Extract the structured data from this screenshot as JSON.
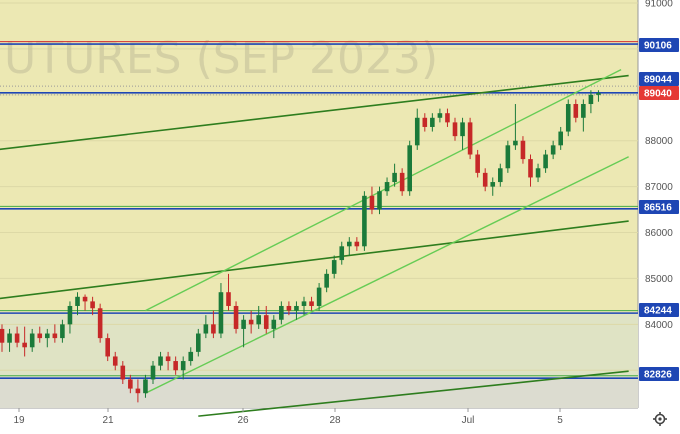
{
  "chart_data": {
    "type": "candlestick",
    "watermark": "UTURES (SEP 2023)",
    "x_ticks": [
      "19",
      "21",
      "26",
      "28",
      "Jul",
      "5"
    ],
    "y_ticks": [
      "91000",
      "88000",
      "87000",
      "86000",
      "85000",
      "84000"
    ],
    "ylim": [
      82300,
      91100
    ],
    "price_tags": [
      {
        "label": "90106",
        "value": 90106,
        "color": "#1e46b4"
      },
      {
        "label": "89044",
        "value": 89044,
        "color": "#1e46b4"
      },
      {
        "label": "89040",
        "value": 89040,
        "color": "#e53935"
      },
      {
        "label": "86516",
        "value": 86516,
        "color": "#1e46b4"
      },
      {
        "label": "84244",
        "value": 84244,
        "color": "#1e46b4"
      },
      {
        "label": "82826",
        "value": 82826,
        "color": "#1e46b4"
      }
    ],
    "candles": [
      {
        "o": 83900,
        "h": 84000,
        "l": 83400,
        "c": 83600
      },
      {
        "o": 83600,
        "h": 83900,
        "l": 83400,
        "c": 83800
      },
      {
        "o": 83800,
        "h": 83950,
        "l": 83500,
        "c": 83600
      },
      {
        "o": 83600,
        "h": 83950,
        "l": 83300,
        "c": 83500
      },
      {
        "o": 83500,
        "h": 83900,
        "l": 83400,
        "c": 83800
      },
      {
        "o": 83800,
        "h": 83950,
        "l": 83600,
        "c": 83700
      },
      {
        "o": 83700,
        "h": 83900,
        "l": 83500,
        "c": 83800
      },
      {
        "o": 83800,
        "h": 84000,
        "l": 83600,
        "c": 83700
      },
      {
        "o": 83700,
        "h": 84100,
        "l": 83600,
        "c": 84000
      },
      {
        "o": 84000,
        "h": 84500,
        "l": 83800,
        "c": 84400
      },
      {
        "o": 84400,
        "h": 84700,
        "l": 84200,
        "c": 84600
      },
      {
        "o": 84600,
        "h": 84650,
        "l": 84300,
        "c": 84500
      },
      {
        "o": 84500,
        "h": 84600,
        "l": 84200,
        "c": 84350
      },
      {
        "o": 84350,
        "h": 84450,
        "l": 83600,
        "c": 83700
      },
      {
        "o": 83700,
        "h": 83800,
        "l": 83200,
        "c": 83300
      },
      {
        "o": 83300,
        "h": 83400,
        "l": 83000,
        "c": 83100
      },
      {
        "o": 83100,
        "h": 83200,
        "l": 82700,
        "c": 82800
      },
      {
        "o": 82800,
        "h": 82900,
        "l": 82500,
        "c": 82600
      },
      {
        "o": 82600,
        "h": 82800,
        "l": 82300,
        "c": 82500
      },
      {
        "o": 82500,
        "h": 82900,
        "l": 82400,
        "c": 82800
      },
      {
        "o": 82800,
        "h": 83200,
        "l": 82700,
        "c": 83100
      },
      {
        "o": 83100,
        "h": 83400,
        "l": 83000,
        "c": 83300
      },
      {
        "o": 83300,
        "h": 83400,
        "l": 83000,
        "c": 83200
      },
      {
        "o": 83200,
        "h": 83300,
        "l": 82900,
        "c": 83000
      },
      {
        "o": 83000,
        "h": 83300,
        "l": 82800,
        "c": 83200
      },
      {
        "o": 83200,
        "h": 83500,
        "l": 83100,
        "c": 83400
      },
      {
        "o": 83400,
        "h": 83900,
        "l": 83300,
        "c": 83800
      },
      {
        "o": 83800,
        "h": 84200,
        "l": 83700,
        "c": 84000
      },
      {
        "o": 84000,
        "h": 84300,
        "l": 83700,
        "c": 83800
      },
      {
        "o": 83800,
        "h": 84900,
        "l": 83700,
        "c": 84700
      },
      {
        "o": 84700,
        "h": 85100,
        "l": 84300,
        "c": 84400
      },
      {
        "o": 84400,
        "h": 84500,
        "l": 83800,
        "c": 83900
      },
      {
        "o": 83900,
        "h": 84200,
        "l": 83500,
        "c": 84100
      },
      {
        "o": 84100,
        "h": 84300,
        "l": 83800,
        "c": 84000
      },
      {
        "o": 84000,
        "h": 84400,
        "l": 83900,
        "c": 84200
      },
      {
        "o": 84200,
        "h": 84400,
        "l": 83800,
        "c": 83900
      },
      {
        "o": 83900,
        "h": 84200,
        "l": 83700,
        "c": 84100
      },
      {
        "o": 84100,
        "h": 84500,
        "l": 84000,
        "c": 84400
      },
      {
        "o": 84400,
        "h": 84500,
        "l": 84200,
        "c": 84300
      },
      {
        "o": 84300,
        "h": 84500,
        "l": 84100,
        "c": 84400
      },
      {
        "o": 84400,
        "h": 84600,
        "l": 84200,
        "c": 84500
      },
      {
        "o": 84500,
        "h": 84600,
        "l": 84300,
        "c": 84400
      },
      {
        "o": 84400,
        "h": 84900,
        "l": 84300,
        "c": 84800
      },
      {
        "o": 84800,
        "h": 85200,
        "l": 84700,
        "c": 85100
      },
      {
        "o": 85100,
        "h": 85500,
        "l": 85000,
        "c": 85400
      },
      {
        "o": 85400,
        "h": 85800,
        "l": 85300,
        "c": 85700
      },
      {
        "o": 85700,
        "h": 85900,
        "l": 85500,
        "c": 85800
      },
      {
        "o": 85800,
        "h": 85900,
        "l": 85600,
        "c": 85700
      },
      {
        "o": 85700,
        "h": 86900,
        "l": 85600,
        "c": 86800
      },
      {
        "o": 86800,
        "h": 87000,
        "l": 86400,
        "c": 86500
      },
      {
        "o": 86500,
        "h": 87000,
        "l": 86400,
        "c": 86900
      },
      {
        "o": 86900,
        "h": 87200,
        "l": 86800,
        "c": 87100
      },
      {
        "o": 87100,
        "h": 87500,
        "l": 87000,
        "c": 87300
      },
      {
        "o": 87300,
        "h": 87400,
        "l": 86800,
        "c": 86900
      },
      {
        "o": 86900,
        "h": 88000,
        "l": 86800,
        "c": 87900
      },
      {
        "o": 87900,
        "h": 88700,
        "l": 87800,
        "c": 88500
      },
      {
        "o": 88500,
        "h": 88600,
        "l": 88200,
        "c": 88300
      },
      {
        "o": 88300,
        "h": 88600,
        "l": 88200,
        "c": 88500
      },
      {
        "o": 88500,
        "h": 88700,
        "l": 88400,
        "c": 88600
      },
      {
        "o": 88600,
        "h": 88700,
        "l": 88300,
        "c": 88400
      },
      {
        "o": 88400,
        "h": 88500,
        "l": 88000,
        "c": 88100
      },
      {
        "o": 88100,
        "h": 88500,
        "l": 87800,
        "c": 88400
      },
      {
        "o": 88400,
        "h": 88500,
        "l": 87600,
        "c": 87700
      },
      {
        "o": 87700,
        "h": 87800,
        "l": 87200,
        "c": 87300
      },
      {
        "o": 87300,
        "h": 87400,
        "l": 86900,
        "c": 87000
      },
      {
        "o": 87000,
        "h": 87200,
        "l": 86800,
        "c": 87100
      },
      {
        "o": 87100,
        "h": 87500,
        "l": 87000,
        "c": 87400
      },
      {
        "o": 87400,
        "h": 88000,
        "l": 87300,
        "c": 87900
      },
      {
        "o": 87900,
        "h": 88800,
        "l": 87800,
        "c": 88000
      },
      {
        "o": 88000,
        "h": 88100,
        "l": 87500,
        "c": 87600
      },
      {
        "o": 87600,
        "h": 87700,
        "l": 87000,
        "c": 87200
      },
      {
        "o": 87200,
        "h": 87500,
        "l": 87100,
        "c": 87400
      },
      {
        "o": 87400,
        "h": 87800,
        "l": 87300,
        "c": 87700
      },
      {
        "o": 87700,
        "h": 88000,
        "l": 87600,
        "c": 87900
      },
      {
        "o": 87900,
        "h": 88300,
        "l": 87800,
        "c": 88200
      },
      {
        "o": 88200,
        "h": 88900,
        "l": 88100,
        "c": 88800
      },
      {
        "o": 88800,
        "h": 88900,
        "l": 88400,
        "c": 88500
      },
      {
        "o": 88500,
        "h": 88900,
        "l": 88200,
        "c": 88800
      },
      {
        "o": 88800,
        "h": 89100,
        "l": 88600,
        "c": 89000
      },
      {
        "o": 89000,
        "h": 89100,
        "l": 88850,
        "c": 89040
      }
    ],
    "horizontal_levels": [
      90160,
      90106,
      89044,
      86516,
      84244,
      82826
    ],
    "channel_lines": [
      {
        "from": [
          -1,
          87800
        ],
        "to": [
          83,
          89420
        ],
        "color": "#2e7d1e"
      },
      {
        "from": [
          -1,
          84550
        ],
        "to": [
          83,
          86250
        ],
        "color": "#2e7d1e"
      },
      {
        "from": [
          26,
          82000
        ],
        "to": [
          83,
          82980
        ],
        "color": "#2e7d1e"
      },
      {
        "from": [
          19,
          82500
        ],
        "to": [
          83,
          87650
        ],
        "color": "#66cc55"
      },
      {
        "from": [
          19,
          84300
        ],
        "to": [
          82,
          89550
        ],
        "color": "#66cc55"
      }
    ]
  }
}
